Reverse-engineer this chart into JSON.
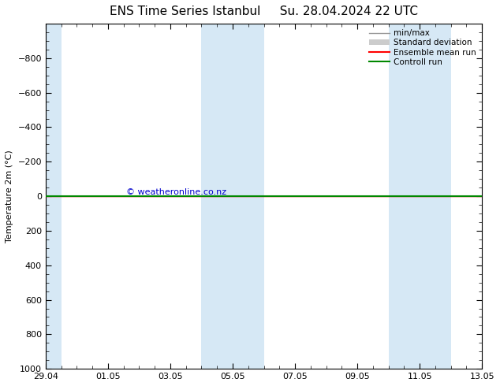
{
  "title": "ENS Time Series Istanbul",
  "subtitle": "Su. 28.04.2024 22 UTC",
  "ylabel": "Temperature 2m (°C)",
  "ylim_bottom": 1000,
  "ylim_top": -1000,
  "yticks": [
    -800,
    -600,
    -400,
    -200,
    0,
    200,
    400,
    600,
    800,
    1000
  ],
  "xtick_labels": [
    "29.04",
    "01.05",
    "03.05",
    "05.05",
    "07.05",
    "09.05",
    "11.05",
    "13.05"
  ],
  "xtick_positions": [
    0,
    2,
    4,
    6,
    8,
    10,
    12,
    14
  ],
  "x_start": 0,
  "x_end": 14,
  "shaded_bands": [
    {
      "x_start": 0.0,
      "x_end": 0.5
    },
    {
      "x_start": 5.0,
      "x_end": 7.0
    },
    {
      "x_start": 11.0,
      "x_end": 13.0
    }
  ],
  "shade_color": "#d6e8f5",
  "control_run_y": 0,
  "control_run_color": "#008800",
  "ensemble_mean_color": "#ff0000",
  "minmax_color": "#999999",
  "std_dev_fill_color": "#cccccc",
  "watermark_text": "© weatheronline.co.nz",
  "watermark_color": "#0000cc",
  "background_color": "#ffffff",
  "legend_items": [
    "min/max",
    "Standard deviation",
    "Ensemble mean run",
    "Controll run"
  ],
  "legend_colors": [
    "#999999",
    "#cccccc",
    "#ff0000",
    "#008800"
  ],
  "title_fontsize": 11,
  "axis_fontsize": 8,
  "tick_fontsize": 8
}
